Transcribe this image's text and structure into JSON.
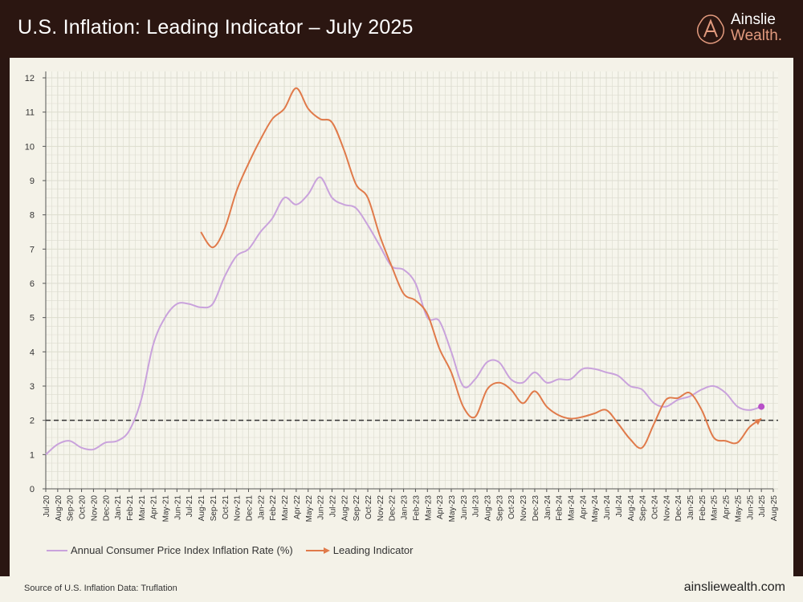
{
  "header": {
    "title": "U.S. Inflation: Leading Indicator – July 2025",
    "logo_line1": "Ainslie",
    "logo_line2": "Wealth."
  },
  "footer": {
    "source": "Source of U.S. Inflation Data: Truflation",
    "site": "ainsliewealth.com"
  },
  "colors": {
    "cpi": "#c9a2dc",
    "leading": "#e07a4a",
    "reference": "#333333",
    "header_bg": "#2b1611",
    "plot_bg": "#f6f5ec",
    "endpoint": "#b850c8"
  },
  "chart_data": {
    "type": "line",
    "title": "U.S. Inflation: Leading Indicator – July 2025",
    "xlabel": "",
    "ylabel": "",
    "ylim": [
      0,
      12
    ],
    "yticks": [
      "0",
      "1",
      "2",
      "3",
      "4",
      "5",
      "6",
      "7",
      "8",
      "9",
      "10",
      "11",
      "12"
    ],
    "grid": true,
    "legend_position": "bottom",
    "reference_line": {
      "y": 2,
      "style": "dashed"
    },
    "categories": [
      "Jul-20",
      "Aug-20",
      "Sep-20",
      "Oct-20",
      "Nov-20",
      "Dec-20",
      "Jan-21",
      "Feb-21",
      "Mar-21",
      "Apr-21",
      "May-21",
      "Jun-21",
      "Jul-21",
      "Aug-21",
      "Sep-21",
      "Oct-21",
      "Nov-21",
      "Dec-21",
      "Jan-22",
      "Feb-22",
      "Mar-22",
      "Apr-22",
      "May-22",
      "Jun-22",
      "Jul-22",
      "Aug-22",
      "Sep-22",
      "Oct-22",
      "Nov-22",
      "Dec-22",
      "Jan-23",
      "Feb-23",
      "Mar-23",
      "Apr-23",
      "May-23",
      "Jun-23",
      "Jul-23",
      "Aug-23",
      "Sep-23",
      "Oct-23",
      "Nov-23",
      "Dec-23",
      "Jan-24",
      "Feb-24",
      "Mar-24",
      "Apr-24",
      "May-24",
      "Jun-24",
      "Jul-24",
      "Aug-24",
      "Sep-24",
      "Oct-24",
      "Nov-24",
      "Dec-24",
      "Jan-25",
      "Feb-25",
      "Mar-25",
      "Apr-25",
      "May-25",
      "Jun-25",
      "Jul-25",
      "Aug-25"
    ],
    "series": [
      {
        "name": "Annual Consumer Price Index Inflation Rate (%)",
        "values": [
          1.0,
          1.3,
          1.4,
          1.2,
          1.15,
          1.35,
          1.4,
          1.7,
          2.6,
          4.2,
          5.0,
          5.4,
          5.4,
          5.3,
          5.4,
          6.2,
          6.8,
          7.0,
          7.5,
          7.9,
          8.5,
          8.3,
          8.6,
          9.1,
          8.5,
          8.3,
          8.2,
          7.7,
          7.1,
          6.5,
          6.4,
          6.0,
          5.0,
          4.9,
          4.0,
          3.0,
          3.2,
          3.7,
          3.7,
          3.2,
          3.1,
          3.4,
          3.1,
          3.2,
          3.2,
          3.5,
          3.5,
          3.4,
          3.3,
          3.0,
          2.9,
          2.5,
          2.4,
          2.6,
          2.7,
          2.9,
          3.0,
          2.8,
          2.4,
          2.3,
          2.4,
          null
        ]
      },
      {
        "name": "Leading Indicator",
        "values": [
          null,
          null,
          null,
          null,
          null,
          null,
          null,
          null,
          null,
          null,
          null,
          null,
          null,
          7.5,
          7.05,
          7.6,
          8.7,
          9.5,
          10.2,
          10.8,
          11.1,
          11.7,
          11.1,
          10.8,
          10.7,
          9.9,
          8.9,
          8.5,
          7.4,
          6.5,
          5.7,
          5.5,
          5.1,
          4.1,
          3.4,
          2.4,
          2.1,
          2.9,
          3.1,
          2.9,
          2.5,
          2.85,
          2.4,
          2.15,
          2.05,
          2.1,
          2.2,
          2.3,
          1.9,
          1.45,
          1.2,
          1.9,
          2.6,
          2.65,
          2.8,
          2.3,
          1.5,
          1.4,
          1.35,
          1.8,
          2.05,
          null
        ]
      }
    ]
  }
}
